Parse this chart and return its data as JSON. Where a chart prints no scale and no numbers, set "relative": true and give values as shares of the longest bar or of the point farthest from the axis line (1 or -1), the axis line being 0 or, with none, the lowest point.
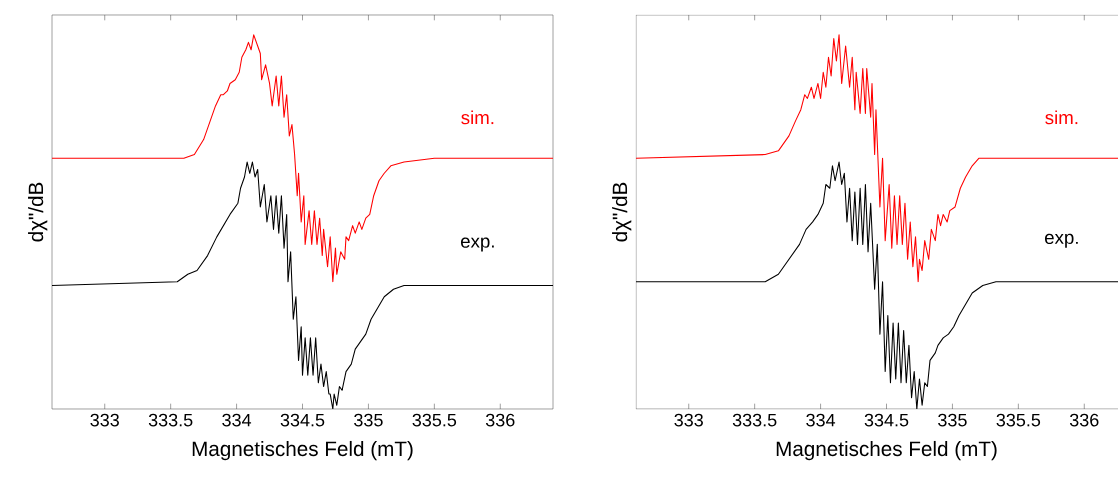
{
  "chart_data": [
    {
      "type": "line",
      "relative": true,
      "xlabel": "Magnetisches Feld (mT)",
      "ylabel": "dχ\"/dB",
      "xlim": [
        332.6,
        336.4
      ],
      "xticks": [
        333,
        333.5,
        334,
        334.5,
        335,
        335.5,
        336
      ],
      "series": [
        {
          "name": "sim.",
          "color": "#ff0000",
          "x": [
            332.6,
            333.6,
            333.68,
            333.75,
            333.8,
            333.84,
            333.88,
            333.9,
            333.93,
            333.95,
            333.99,
            334.02,
            334.04,
            334.07,
            334.09,
            334.11,
            334.13,
            334.16,
            334.18,
            334.19,
            334.22,
            334.25,
            334.27,
            334.3,
            334.32,
            334.34,
            334.36,
            334.38,
            334.4,
            334.42,
            334.44,
            334.46,
            334.47,
            334.49,
            334.51,
            334.52,
            334.55,
            334.57,
            334.59,
            334.61,
            334.63,
            334.65,
            334.66,
            334.69,
            334.71,
            334.73,
            334.75,
            334.76,
            334.79,
            334.82,
            334.83,
            334.85,
            334.88,
            334.9,
            334.93,
            334.95,
            334.98,
            335.01,
            335.04,
            335.08,
            335.12,
            335.17,
            335.27,
            335.5,
            336.4
          ],
          "values": [
            0.67,
            0.67,
            0.68,
            0.72,
            0.77,
            0.81,
            0.84,
            0.84,
            0.85,
            0.87,
            0.88,
            0.9,
            0.94,
            0.96,
            0.98,
            0.96,
            1.0,
            0.97,
            0.95,
            0.88,
            0.92,
            0.87,
            0.81,
            0.89,
            0.81,
            0.89,
            0.78,
            0.84,
            0.73,
            0.76,
            0.68,
            0.57,
            0.63,
            0.5,
            0.57,
            0.44,
            0.53,
            0.44,
            0.53,
            0.44,
            0.51,
            0.41,
            0.48,
            0.38,
            0.46,
            0.34,
            0.43,
            0.36,
            0.42,
            0.4,
            0.46,
            0.45,
            0.49,
            0.47,
            0.5,
            0.48,
            0.51,
            0.52,
            0.57,
            0.61,
            0.63,
            0.65,
            0.66,
            0.67,
            0.67
          ]
        },
        {
          "name": "exp.",
          "color": "#000000",
          "x": [
            332.6,
            333.55,
            333.63,
            333.7,
            333.78,
            333.85,
            333.9,
            333.95,
            334.01,
            334.03,
            334.06,
            334.08,
            334.1,
            334.12,
            334.14,
            334.16,
            334.18,
            334.21,
            334.23,
            334.26,
            334.28,
            334.3,
            334.32,
            334.34,
            334.36,
            334.38,
            334.39,
            334.41,
            334.43,
            334.45,
            334.47,
            334.49,
            334.5,
            334.52,
            334.54,
            334.56,
            334.58,
            334.6,
            334.62,
            334.64,
            334.66,
            334.68,
            334.7,
            334.71,
            334.73,
            334.74,
            334.76,
            334.78,
            334.8,
            334.83,
            334.87,
            334.9,
            334.94,
            334.98,
            335.02,
            335.07,
            335.12,
            335.19,
            335.27,
            335.5,
            336.4
          ],
          "values": [
            0.33,
            0.34,
            0.36,
            0.37,
            0.41,
            0.46,
            0.49,
            0.52,
            0.55,
            0.59,
            0.62,
            0.66,
            0.63,
            0.66,
            0.62,
            0.64,
            0.54,
            0.6,
            0.5,
            0.57,
            0.48,
            0.57,
            0.47,
            0.57,
            0.43,
            0.52,
            0.34,
            0.42,
            0.24,
            0.3,
            0.13,
            0.22,
            0.09,
            0.19,
            0.09,
            0.19,
            0.09,
            0.19,
            0.07,
            0.12,
            0.06,
            0.1,
            0.04,
            0.04,
            0.0,
            0.04,
            0.01,
            0.06,
            0.05,
            0.1,
            0.12,
            0.16,
            0.18,
            0.2,
            0.24,
            0.27,
            0.3,
            0.32,
            0.33,
            0.33,
            0.33
          ]
        }
      ]
    },
    {
      "type": "line",
      "relative": true,
      "xlabel": "Magnetisches Feld (mT)",
      "ylabel": "dχ\"/dB",
      "xlim": [
        332.6,
        336.4
      ],
      "xticks": [
        333,
        333.5,
        334,
        334.5,
        335,
        335.5,
        336
      ],
      "series": [
        {
          "name": "sim.",
          "color": "#ff0000",
          "x": [
            332.6,
            333.58,
            333.68,
            333.76,
            333.81,
            333.85,
            333.88,
            333.9,
            333.93,
            333.95,
            333.98,
            334.0,
            334.02,
            334.04,
            334.06,
            334.08,
            334.1,
            334.12,
            334.14,
            334.16,
            334.19,
            334.22,
            334.24,
            334.26,
            334.27,
            334.3,
            334.32,
            334.34,
            334.35,
            334.38,
            334.39,
            334.41,
            334.42,
            334.45,
            334.47,
            334.49,
            334.52,
            334.54,
            334.56,
            334.58,
            334.6,
            334.62,
            334.64,
            334.66,
            334.68,
            334.7,
            334.72,
            334.74,
            334.75,
            334.77,
            334.79,
            334.82,
            334.84,
            334.87,
            334.89,
            334.91,
            334.93,
            334.96,
            334.98,
            335.02,
            335.06,
            335.1,
            335.15,
            335.2,
            335.33,
            335.64,
            336.4
          ],
          "values": [
            0.67,
            0.68,
            0.69,
            0.73,
            0.77,
            0.8,
            0.84,
            0.83,
            0.86,
            0.83,
            0.87,
            0.83,
            0.9,
            0.86,
            0.94,
            0.89,
            0.99,
            0.93,
            1.0,
            0.87,
            0.97,
            0.86,
            0.94,
            0.8,
            0.9,
            0.79,
            0.91,
            0.79,
            0.91,
            0.78,
            0.87,
            0.68,
            0.8,
            0.54,
            0.67,
            0.45,
            0.6,
            0.43,
            0.57,
            0.44,
            0.57,
            0.44,
            0.55,
            0.4,
            0.5,
            0.38,
            0.46,
            0.34,
            0.4,
            0.37,
            0.45,
            0.4,
            0.48,
            0.45,
            0.52,
            0.49,
            0.52,
            0.5,
            0.53,
            0.54,
            0.59,
            0.62,
            0.65,
            0.67,
            0.67,
            0.67,
            0.67
          ]
        },
        {
          "name": "exp.",
          "color": "#000000",
          "x": [
            332.6,
            333.58,
            333.68,
            333.76,
            333.84,
            333.89,
            333.94,
            333.98,
            334.02,
            334.04,
            334.07,
            334.09,
            334.11,
            334.14,
            334.16,
            334.18,
            334.2,
            334.22,
            334.24,
            334.26,
            334.28,
            334.3,
            334.32,
            334.34,
            334.36,
            334.38,
            334.41,
            334.43,
            334.45,
            334.47,
            334.49,
            334.51,
            334.53,
            334.55,
            334.57,
            334.59,
            334.61,
            334.63,
            334.65,
            334.67,
            334.69,
            334.71,
            334.73,
            334.75,
            334.77,
            334.79,
            334.81,
            334.83,
            334.87,
            334.89,
            334.93,
            334.97,
            335.01,
            335.05,
            335.1,
            335.15,
            335.23,
            335.33,
            335.64,
            336.4
          ],
          "values": [
            0.34,
            0.34,
            0.36,
            0.4,
            0.44,
            0.48,
            0.5,
            0.52,
            0.55,
            0.6,
            0.59,
            0.65,
            0.61,
            0.66,
            0.6,
            0.63,
            0.5,
            0.59,
            0.45,
            0.58,
            0.44,
            0.59,
            0.44,
            0.6,
            0.42,
            0.55,
            0.32,
            0.44,
            0.2,
            0.34,
            0.1,
            0.25,
            0.07,
            0.23,
            0.08,
            0.23,
            0.07,
            0.21,
            0.07,
            0.17,
            0.03,
            0.1,
            0.0,
            0.08,
            0.01,
            0.07,
            0.06,
            0.13,
            0.15,
            0.17,
            0.19,
            0.2,
            0.22,
            0.25,
            0.28,
            0.31,
            0.33,
            0.34,
            0.34,
            0.34
          ]
        }
      ]
    }
  ]
}
